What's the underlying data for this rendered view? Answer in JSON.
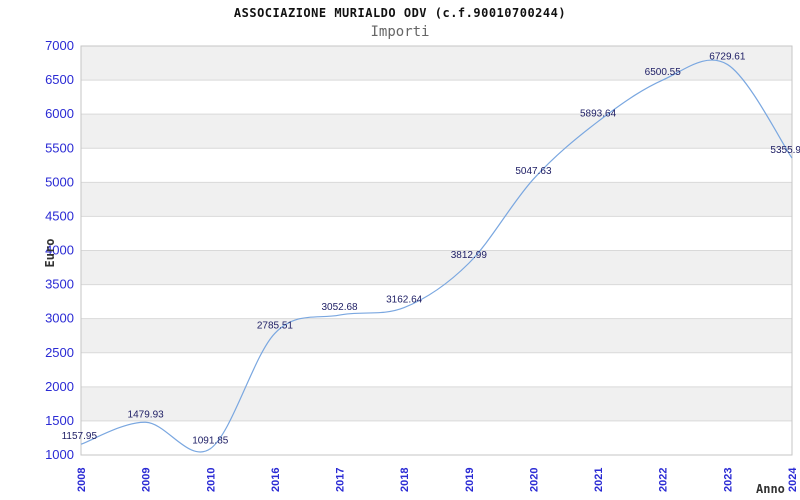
{
  "header": {
    "title": "ASSOCIAZIONE MURIALDO ODV (c.f.90010700244)",
    "subtitle": "Importi"
  },
  "chart_data": {
    "type": "line",
    "categories": [
      "2008",
      "2009",
      "2010",
      "2016",
      "2017",
      "2018",
      "2019",
      "2020",
      "2021",
      "2022",
      "2023",
      "2024"
    ],
    "values": [
      1157.95,
      1479.93,
      1091.85,
      2785.51,
      3052.68,
      3162.64,
      3812.99,
      5047.63,
      5893.64,
      6500.55,
      6729.61,
      5355.9
    ],
    "point_labels": [
      "1157.95",
      "1479.93",
      "1091.85",
      "2785.51",
      "3052.68",
      "3162.64",
      "3812.99",
      "5047.63",
      "5893.64",
      "6500.55",
      "6729.61",
      "5355.9"
    ],
    "title": "ASSOCIAZIONE MURIALDO ODV (c.f.90010700244)",
    "subtitle": "Importi",
    "xlabel": "Anno",
    "ylabel": "Euro",
    "ylim": [
      1000,
      7000
    ],
    "ytick_step": 500,
    "yticks": [
      1000,
      1500,
      2000,
      2500,
      3000,
      3500,
      4000,
      4500,
      5000,
      5500,
      6000,
      6500,
      7000
    ],
    "grid": true,
    "legend_position": "none",
    "colors": {
      "line": "#7aa7e0",
      "axis_tick_label": "#2a2ad4",
      "point_label": "#202066",
      "band_gray": "#f0f0f0",
      "band_white": "#ffffff",
      "grid_line": "#d9d9d9",
      "plot_border": "#c6c6c6",
      "title_text": "#111111",
      "subtitle_text": "#666666",
      "axis_title": "#333333"
    }
  }
}
